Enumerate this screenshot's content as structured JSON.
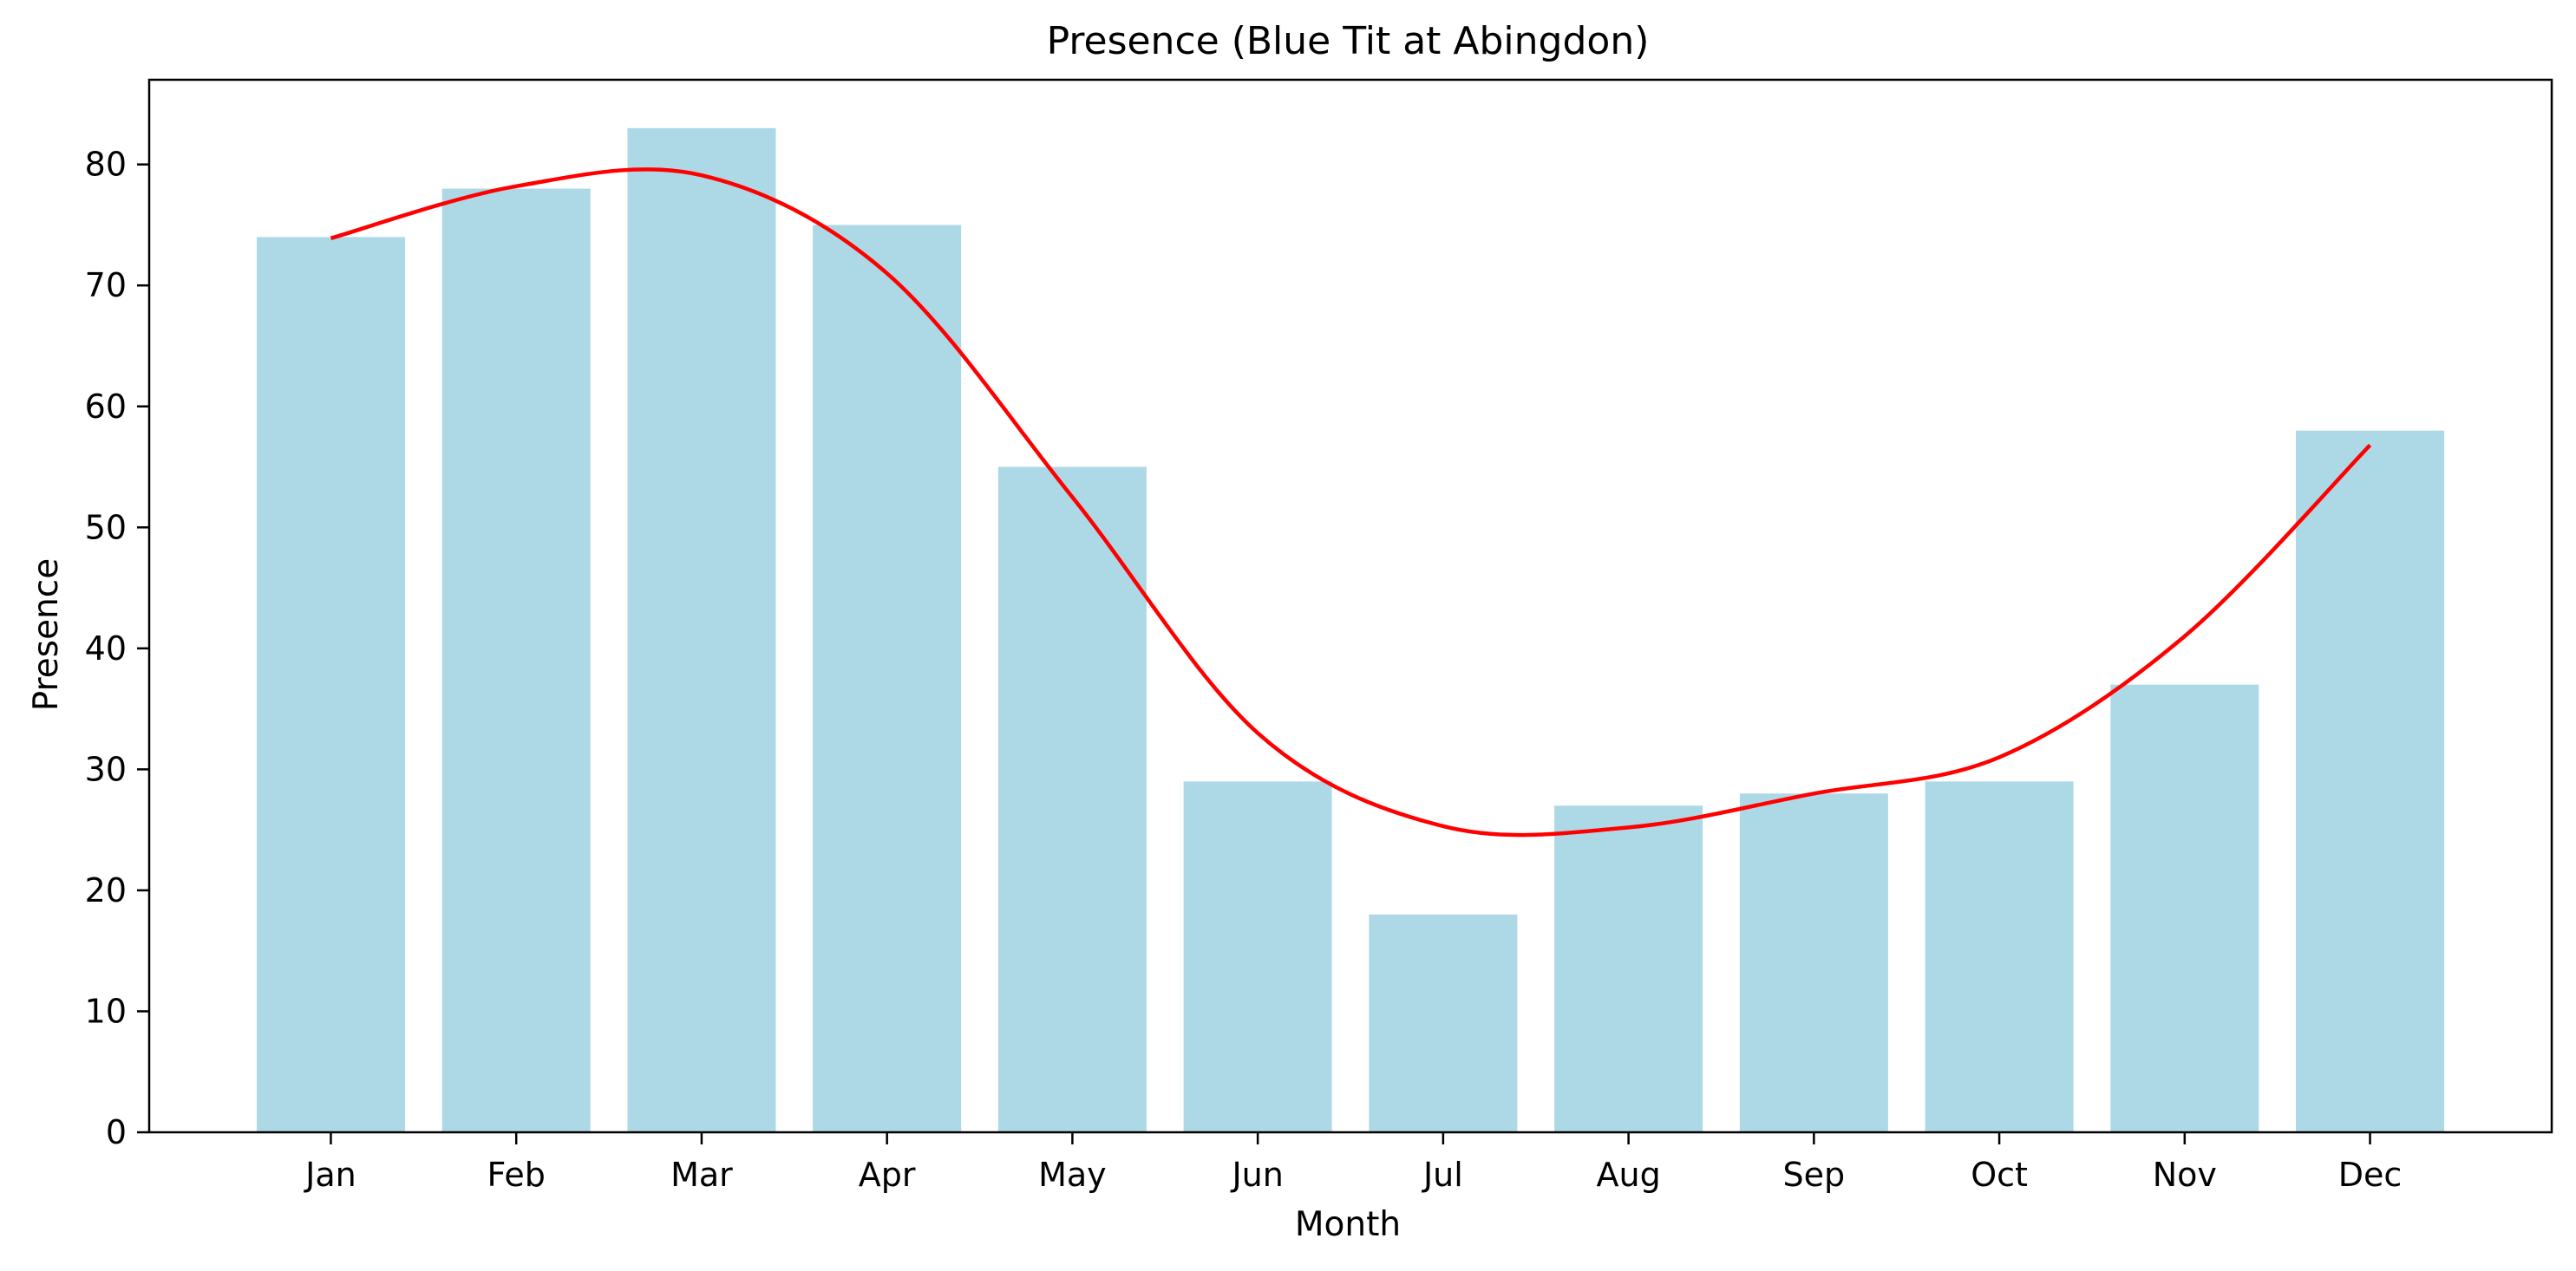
{
  "chart_data": {
    "type": "bar",
    "title": "Presence (Blue Tit at Abingdon)",
    "xlabel": "Month",
    "ylabel": "Presence",
    "categories": [
      "Jan",
      "Feb",
      "Mar",
      "Apr",
      "May",
      "Jun",
      "Jul",
      "Aug",
      "Sep",
      "Oct",
      "Nov",
      "Dec"
    ],
    "values": [
      74,
      78,
      83,
      75,
      55,
      29,
      18,
      27,
      28,
      29,
      37,
      58
    ],
    "smoothed_line": [
      73.9,
      78.2,
      79.1,
      71.0,
      52.5,
      33.0,
      25.3,
      25.2,
      28.0,
      31.0,
      41.0,
      56.8
    ],
    "ylim": [
      0,
      87
    ],
    "yticks": [
      0,
      10,
      20,
      30,
      40,
      50,
      60,
      70,
      80
    ],
    "bar_color": "#add8e6",
    "line_color": "#ff0000",
    "grid": false,
    "legend": "none"
  }
}
